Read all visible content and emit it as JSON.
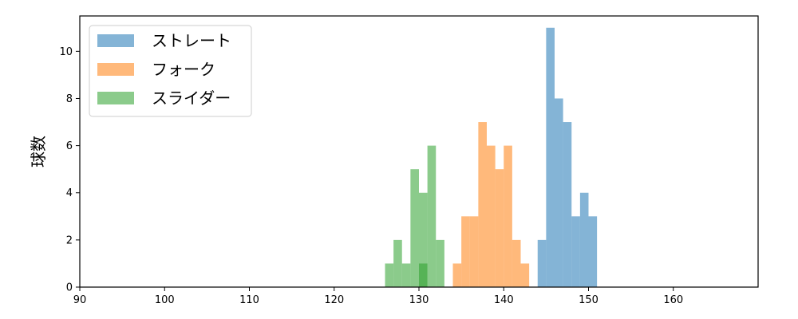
{
  "chart_data": {
    "type": "histogram",
    "title": "",
    "xlabel": "",
    "ylabel": "球数",
    "xlim": [
      90,
      170
    ],
    "ylim": [
      0,
      11.5
    ],
    "xticks": [
      90,
      100,
      110,
      120,
      130,
      140,
      150,
      160
    ],
    "yticks": [
      0,
      2,
      4,
      6,
      8,
      10
    ],
    "bin_width": 1,
    "legend": {
      "position": "top-left"
    },
    "series": [
      {
        "name": "ストレート",
        "color": "#1f77b4",
        "bins": [
          {
            "start": 144,
            "count": 2
          },
          {
            "start": 145,
            "count": 11
          },
          {
            "start": 146,
            "count": 8
          },
          {
            "start": 147,
            "count": 7
          },
          {
            "start": 148,
            "count": 3
          },
          {
            "start": 149,
            "count": 4
          },
          {
            "start": 150,
            "count": 3
          }
        ]
      },
      {
        "name": "フォーク",
        "color": "#ff7f0e",
        "bins": [
          {
            "start": 134,
            "count": 1
          },
          {
            "start": 135,
            "count": 3
          },
          {
            "start": 136,
            "count": 3
          },
          {
            "start": 137,
            "count": 7
          },
          {
            "start": 138,
            "count": 6
          },
          {
            "start": 139,
            "count": 5
          },
          {
            "start": 140,
            "count": 6
          },
          {
            "start": 141,
            "count": 2
          },
          {
            "start": 142,
            "count": 1
          }
        ]
      },
      {
        "name": "スライダー",
        "color": "#2ca02c",
        "bins": [
          {
            "start": 126,
            "count": 1
          },
          {
            "start": 127,
            "count": 2
          },
          {
            "start": 128,
            "count": 1
          },
          {
            "start": 129,
            "count": 5
          },
          {
            "start": 130,
            "count": 4
          },
          {
            "start": 131,
            "count": 6
          },
          {
            "start": 132,
            "count": 2
          },
          {
            "start": 130,
            "count": 1
          }
        ]
      }
    ]
  }
}
